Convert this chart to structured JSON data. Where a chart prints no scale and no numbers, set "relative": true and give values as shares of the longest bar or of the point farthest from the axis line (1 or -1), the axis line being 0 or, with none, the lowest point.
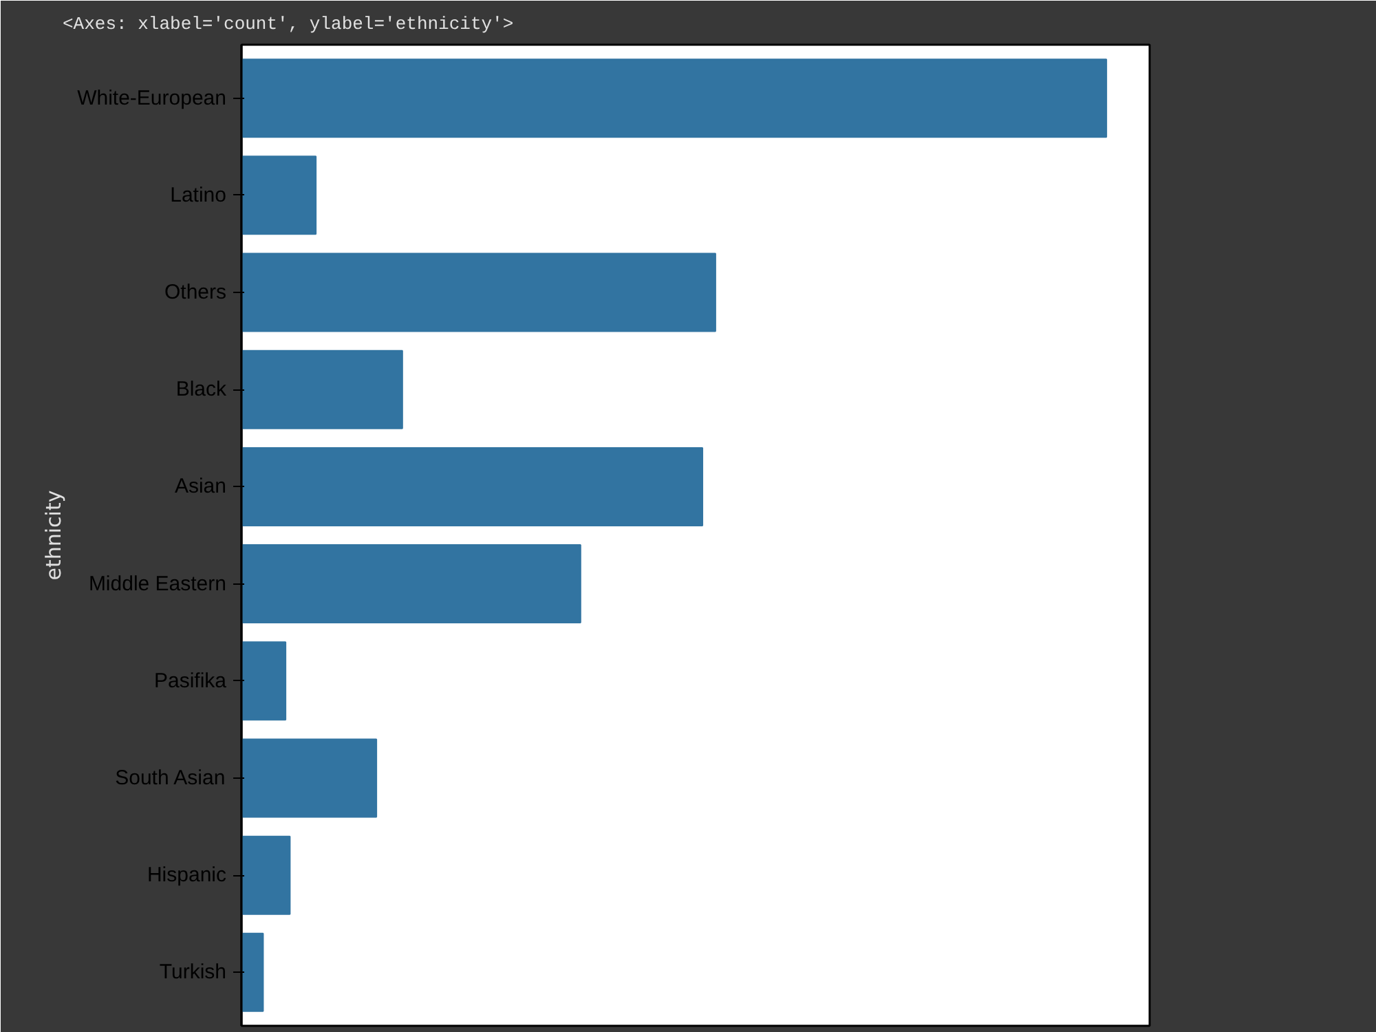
{
  "chart_data": {
    "type": "bar",
    "orientation": "horizontal",
    "relative": true,
    "ylabel": "ethnicity",
    "annotations": [
      "<Axes: xlabel='count', ylabel='ethnicity'>"
    ],
    "categories": [
      "White-European",
      "Latino",
      "Others",
      "Black",
      "Asian",
      "Middle Eastern",
      "Pasifika",
      "South Asian",
      "Hispanic",
      "Turkish"
    ],
    "values": [
      1,
      0.086,
      0.548,
      0.186,
      0.533,
      0.392,
      0.051,
      0.156,
      0.056,
      0.025
    ],
    "color": "#3274a1",
    "grid": false
  }
}
